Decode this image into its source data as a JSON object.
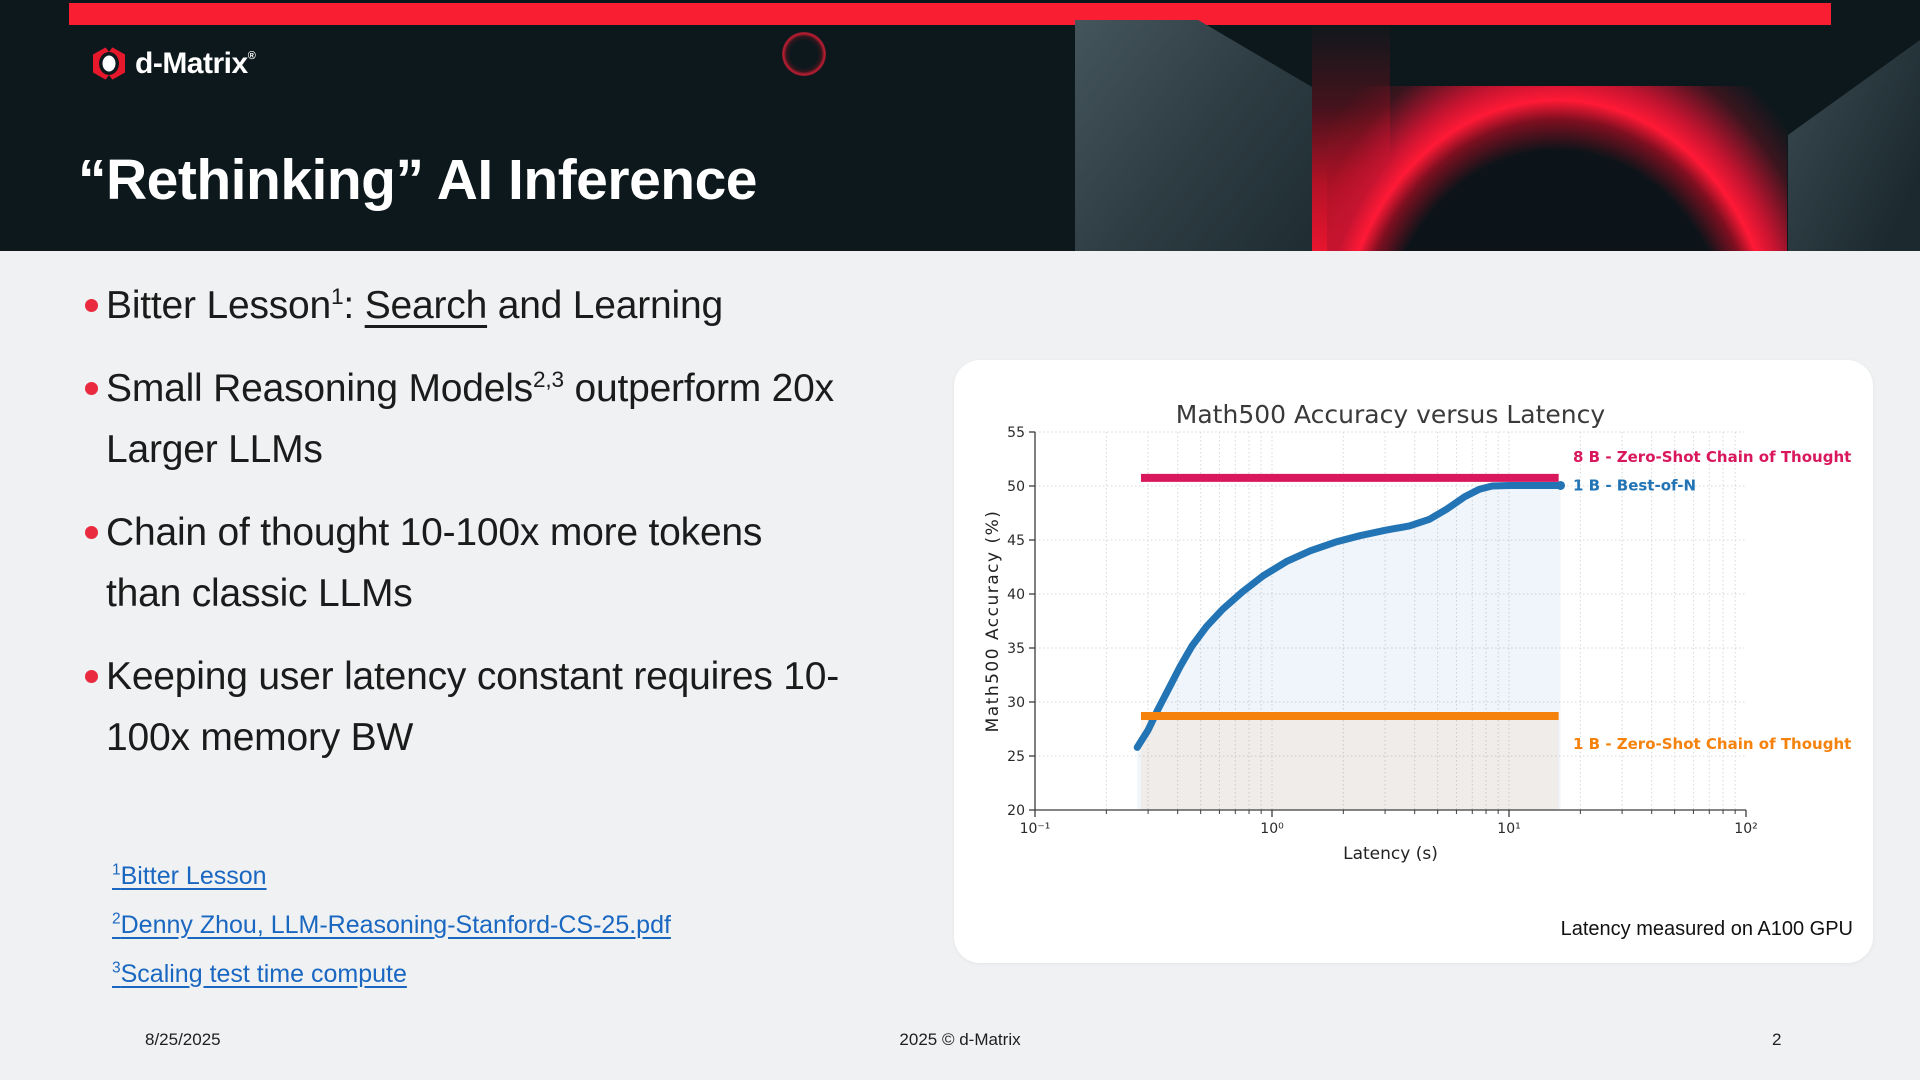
{
  "logo": {
    "text": "d-Matrix",
    "mark": "®"
  },
  "title": "“Rethinking” AI Inference",
  "bullets": [
    {
      "segments": [
        {
          "t": "text",
          "v": "Bitter Lesson"
        },
        {
          "t": "sup",
          "v": "1"
        },
        {
          "t": "text",
          "v": ": "
        },
        {
          "t": "u",
          "v": "Search"
        },
        {
          "t": "text",
          "v": " and Learning"
        }
      ]
    },
    {
      "segments": [
        {
          "t": "text",
          "v": "Small Reasoning Models"
        },
        {
          "t": "sup",
          "v": "2,3"
        },
        {
          "t": "text",
          "v": " outperform 20x Larger LLMs"
        }
      ]
    },
    {
      "segments": [
        {
          "t": "text",
          "v": "Chain of thought 10-100x more tokens than classic LLMs"
        }
      ]
    },
    {
      "segments": [
        {
          "t": "text",
          "v": "Keeping user latency constant requires 10-100x memory BW"
        }
      ]
    }
  ],
  "footnotes": [
    {
      "sup": "1",
      "label": "Bitter Lesson"
    },
    {
      "sup": "2",
      "label": "Denny Zhou, LLM-Reasoning-Stanford-CS-25.pdf"
    },
    {
      "sup": "3",
      "label": "Scaling test time compute"
    }
  ],
  "chart_data": {
    "type": "line",
    "title": "Math500 Accuracy versus Latency",
    "xlabel": "Latency (s)",
    "ylabel": "Math500 Accuracy (%)",
    "x_scale": "log",
    "xlim": [
      0.1,
      100
    ],
    "ylim": [
      20,
      55
    ],
    "x_ticks": [
      {
        "value": 0.1,
        "label": "10⁻¹"
      },
      {
        "value": 1,
        "label": "10⁰"
      },
      {
        "value": 10,
        "label": "10¹"
      },
      {
        "value": 100,
        "label": "10²"
      }
    ],
    "x_minor_ticks": [
      0.2,
      0.3,
      0.4,
      0.5,
      0.6,
      0.7,
      0.8,
      0.9,
      2,
      3,
      4,
      5,
      6,
      7,
      8,
      9,
      20,
      30,
      40,
      50,
      60,
      70,
      80,
      90
    ],
    "y_ticks": [
      20,
      25,
      30,
      35,
      40,
      45,
      50,
      55
    ],
    "grid": true,
    "annotation": "Latency measured on A100 GPU",
    "series": [
      {
        "name": "8 B - Zero-Shot Chain of Thought",
        "type": "hline",
        "color": "#d8175c",
        "value": 50.75,
        "x_start": 0.28,
        "x_end": 16.2
      },
      {
        "name": "1 B - Best-of-N",
        "type": "line",
        "color": "#2274b5",
        "fill_alpha": 0.07,
        "end_marker": true,
        "points": [
          [
            0.27,
            25.8
          ],
          [
            0.3,
            27.4
          ],
          [
            0.33,
            29.3
          ],
          [
            0.37,
            31.4
          ],
          [
            0.41,
            33.3
          ],
          [
            0.46,
            35.2
          ],
          [
            0.53,
            37.0
          ],
          [
            0.62,
            38.6
          ],
          [
            0.75,
            40.2
          ],
          [
            0.92,
            41.7
          ],
          [
            1.15,
            43.0
          ],
          [
            1.45,
            44.0
          ],
          [
            1.85,
            44.8
          ],
          [
            2.35,
            45.4
          ],
          [
            3.0,
            45.9
          ],
          [
            3.8,
            46.3
          ],
          [
            4.6,
            46.9
          ],
          [
            5.5,
            47.9
          ],
          [
            6.5,
            49.0
          ],
          [
            7.5,
            49.7
          ],
          [
            8.5,
            50.0
          ],
          [
            10,
            50.05
          ],
          [
            13,
            50.05
          ],
          [
            16.5,
            50.05
          ]
        ]
      },
      {
        "name": "1 B - Zero-Shot Chain of Thought",
        "type": "hline",
        "color": "#f5820d",
        "fill_alpha": 0.07,
        "value": 28.7,
        "x_start": 0.28,
        "x_end": 16.2
      }
    ]
  },
  "footer": {
    "date": "8/25/2025",
    "copyright": "2025 © d-Matrix",
    "page": "2"
  },
  "colors": {
    "header_bg": "#0d181c",
    "accent_red": "#fa1e33",
    "bullet_red": "#ea2a3f",
    "link_blue": "#1a67c1",
    "slide_bg": "#eff1f2",
    "card_bg": "#ffffff"
  }
}
